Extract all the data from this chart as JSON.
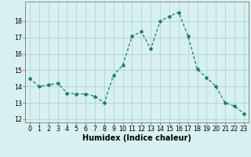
{
  "x": [
    0,
    1,
    2,
    3,
    4,
    5,
    6,
    7,
    8,
    9,
    10,
    11,
    12,
    13,
    14,
    15,
    16,
    17,
    18,
    19,
    20,
    21,
    22,
    23
  ],
  "y": [
    14.5,
    14.0,
    14.1,
    14.2,
    13.6,
    13.55,
    13.55,
    13.4,
    13.0,
    14.7,
    15.3,
    17.1,
    17.35,
    16.3,
    18.0,
    18.3,
    18.55,
    17.1,
    15.05,
    14.55,
    14.0,
    13.0,
    12.8,
    12.35
  ],
  "xlabel": "Humidex (Indice chaleur)",
  "ylim": [
    11.8,
    19.2
  ],
  "xlim": [
    -0.5,
    23.5
  ],
  "yticks": [
    12,
    13,
    14,
    15,
    16,
    17,
    18
  ],
  "xticks": [
    0,
    1,
    2,
    3,
    4,
    5,
    6,
    7,
    8,
    9,
    10,
    11,
    12,
    13,
    14,
    15,
    16,
    17,
    18,
    19,
    20,
    21,
    22,
    23
  ],
  "line_color": "#1a7a6e",
  "marker_color": "#1a7a6e",
  "bg_color": "#d8f0f0",
  "grid_color": "#b0d8d8",
  "tick_label_fontsize": 5.8,
  "xlabel_fontsize": 7.0
}
